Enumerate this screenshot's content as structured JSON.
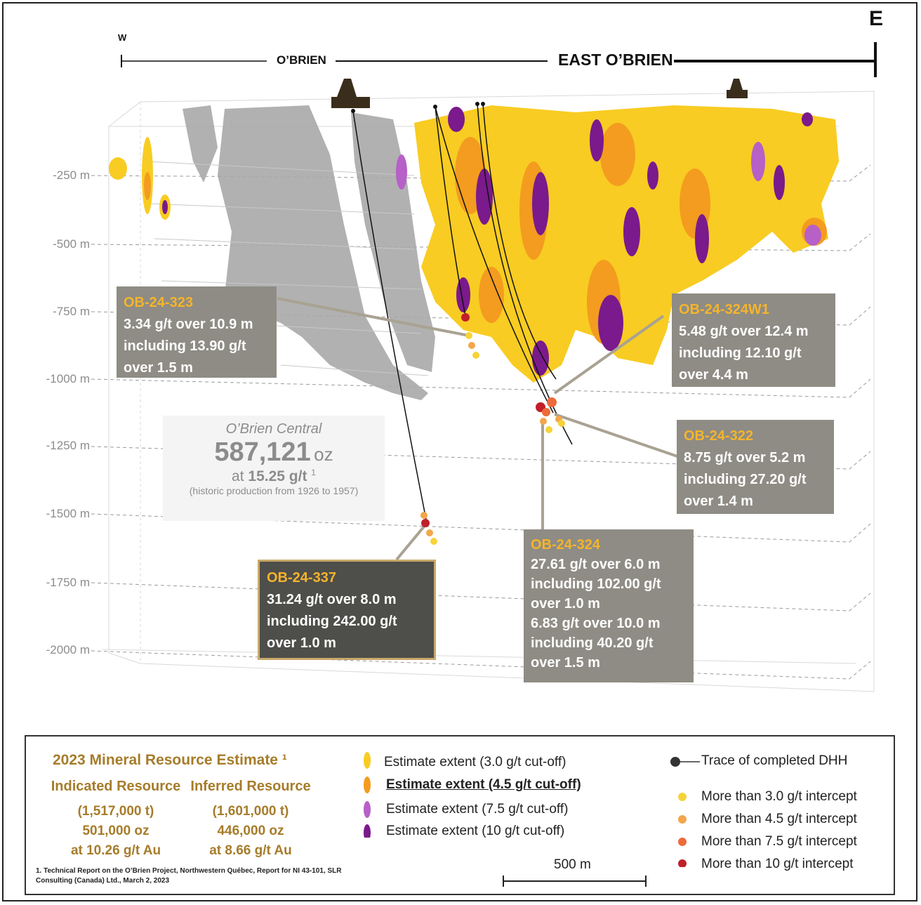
{
  "compass": {
    "west": "W",
    "east": "E"
  },
  "zones": {
    "obrien": "O’BRIEN",
    "east_obrien": "EAST O’BRIEN"
  },
  "depths": [
    "-250 m",
    "-500 m",
    "-750 m",
    "-1000 m",
    "-1250 m",
    "-1500 m",
    "-1750 m",
    "-2000 m"
  ],
  "obrien_central": {
    "title": "O’Brien Central",
    "ounces": "587,121",
    "unit": "oz",
    "grade_prefix": "at",
    "grade": "15.25 g/t",
    "footnote_ref": "1",
    "note": "(historic production from 1926 to 1957)"
  },
  "intercepts": [
    {
      "id": "OB-24-323",
      "lines": [
        "3.34 g/t over 10.9 m",
        "including 13.90 g/t",
        "over 1.5 m"
      ]
    },
    {
      "id": "OB-24-324W1",
      "lines": [
        "5.48 g/t over 12.4 m",
        "including 12.10 g/t",
        "over 4.4 m"
      ]
    },
    {
      "id": "OB-24-322",
      "lines": [
        "8.75 g/t over 5.2 m",
        "including 27.20 g/t",
        "over 1.4 m"
      ]
    },
    {
      "id": "OB-24-324",
      "lines": [
        "27.61 g/t over 6.0 m",
        "including 102.00 g/t",
        "over 1.0 m",
        "6.83 g/t over 10.0 m",
        "including 40.20 g/t",
        "over 1.5 m"
      ]
    },
    {
      "id": "OB-24-337",
      "lines": [
        "31.24 g/t over 8.0 m",
        "including 242.00 g/t",
        "over 1.0 m"
      ]
    }
  ],
  "legend": {
    "resource_title": "2023 Mineral Resource Estimate ¹",
    "indicated": {
      "label": "Indicated Resource",
      "tonnes": "(1,517,000 t)",
      "ounces": "501,000 oz",
      "grade": "at 10.26 g/t Au"
    },
    "inferred": {
      "label": "Inferred Resource",
      "tonnes": "(1,601,000 t)",
      "ounces": "446,000 oz",
      "grade": "at 8.66 g/t Au"
    },
    "footnote_1": "1. Technical Report on the O’Brien Project, Northwestern Québec, Report for NI 43-101, SLR",
    "footnote_2": "Consulting (Canada) Ltd., March 2, 2023",
    "extents": [
      {
        "label": "Estimate extent (3.0  g/t cut-off)",
        "color": "#f8cc22"
      },
      {
        "label": "Estimate extent (4.5  g/t cut-off)",
        "color": "#f39c1f"
      },
      {
        "label": "Estimate extent (7.5 g/t cut-off)",
        "color": "#b760c7"
      },
      {
        "label": "Estimate extent (10 g/t cut-off)",
        "color": "#7a1a8c"
      }
    ],
    "dhh_trace": "Trace of completed DHH",
    "intercept_classes": [
      {
        "label": "More than 3.0 g/t intercept",
        "color": "#f6d33a"
      },
      {
        "label": "More than 4.5 g/t intercept",
        "color": "#f3a64a"
      },
      {
        "label": "More than 7.5 g/t intercept",
        "color": "#ee6a3a"
      },
      {
        "label": "More than 10 g/t intercept",
        "color": "#c0202a"
      }
    ],
    "scale": "500 m"
  },
  "colors": {
    "box_grey": "#8e8c84",
    "box_dark": "#4e4e4a",
    "title_orange": "#f5b42c",
    "resource_gold": "#a67c2a"
  }
}
